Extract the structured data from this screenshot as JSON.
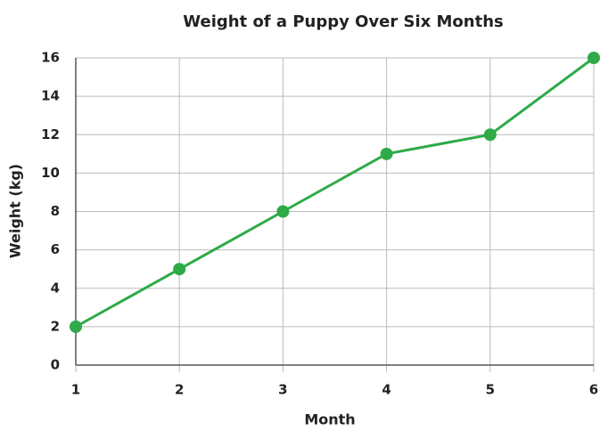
{
  "chart_data": {
    "type": "line",
    "title": "Weight of a Puppy Over Six Months",
    "x_label": "Month",
    "y_label": "Weight (kg)",
    "x": [
      1,
      2,
      3,
      4,
      5,
      6
    ],
    "values": [
      2,
      5,
      8,
      11,
      12,
      16
    ],
    "color": "#2eaa48",
    "xlim": [
      1,
      6
    ],
    "xticks": [
      1,
      2,
      3,
      4,
      5,
      6
    ],
    "ylim": [
      0,
      16
    ],
    "yticks": [
      0,
      2,
      4,
      6,
      8,
      10,
      12,
      14,
      16
    ],
    "grid": true
  }
}
